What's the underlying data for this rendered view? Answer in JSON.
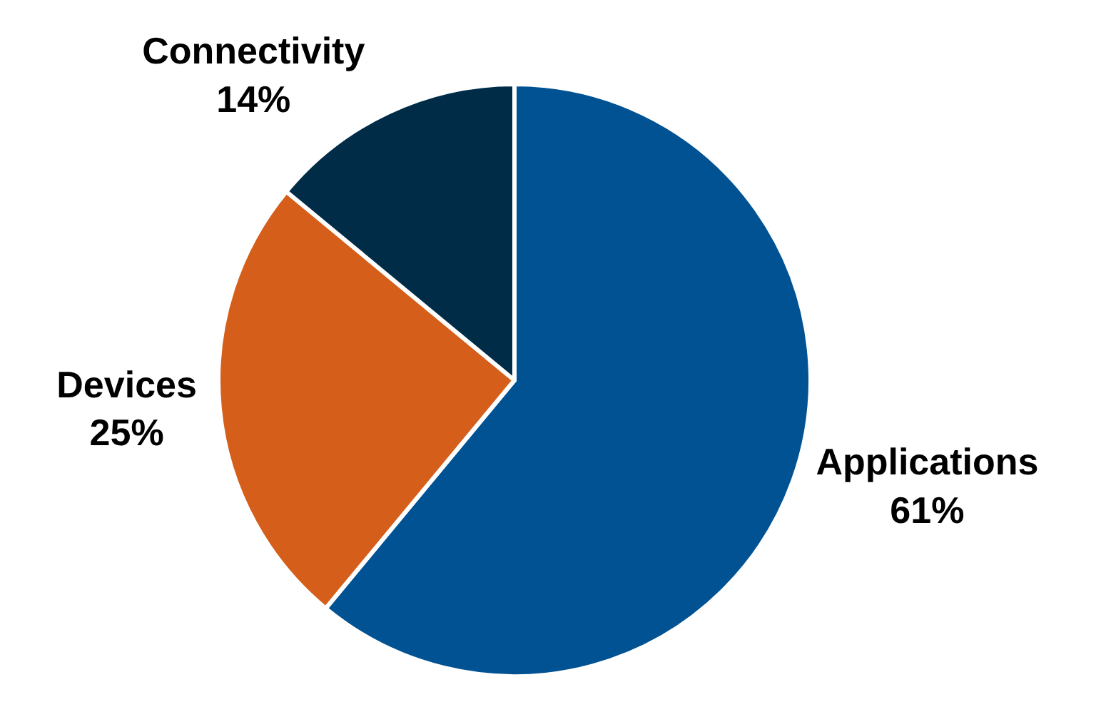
{
  "chart_data": {
    "type": "pie",
    "categories": [
      "Applications",
      "Devices",
      "Connectivity"
    ],
    "values": [
      61,
      25,
      14
    ],
    "value_labels": [
      "61%",
      "25%",
      "14%"
    ],
    "colors": [
      "#005293",
      "#d55e1a",
      "#002c47"
    ],
    "legend": false
  }
}
